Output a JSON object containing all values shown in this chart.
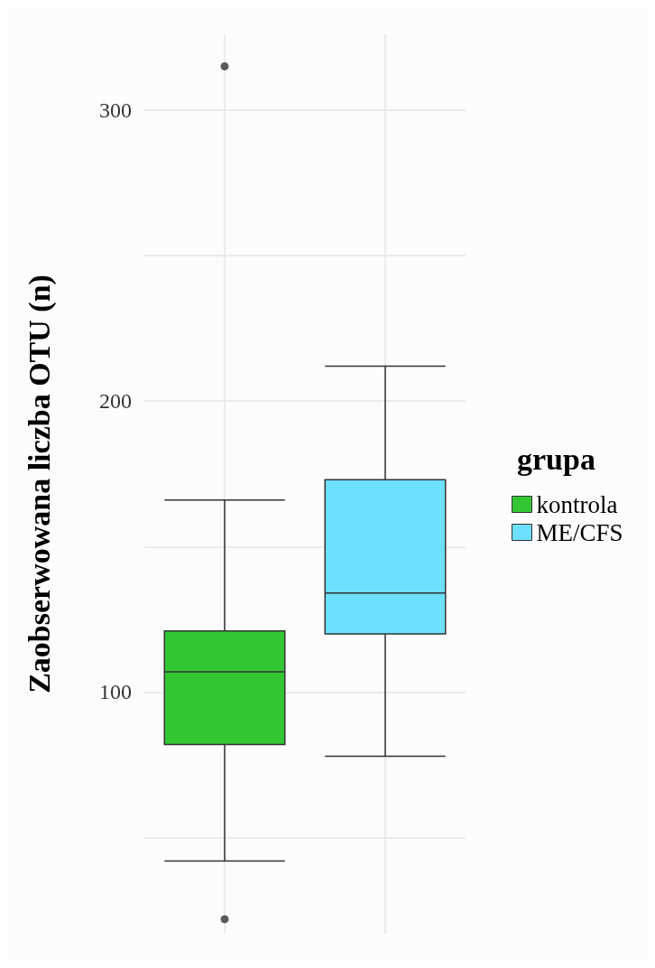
{
  "chart_data": {
    "type": "box",
    "categories": [
      null,
      null
    ],
    "ylabel": "Zaobserwowana liczba OTU (n)",
    "legend_title": "grupa",
    "legend": "right",
    "grid": true,
    "ylim": [
      17,
      326
    ],
    "yticks": [
      {
        "value": 50,
        "label": null
      },
      100,
      {
        "value": 150,
        "label": null
      },
      200,
      {
        "value": 250,
        "label": null
      },
      300
    ],
    "series": [
      {
        "name": "kontrola",
        "color": "#33c633",
        "boxes": [
          {
            "low": 42,
            "q1": 82,
            "median": 107,
            "q3": 121,
            "high": 166,
            "outliers": [
              22,
              315
            ]
          },
          null
        ]
      },
      {
        "name": "ME/CFS",
        "color": "#6ddfff",
        "boxes": [
          null,
          {
            "low": 78,
            "q1": 120,
            "median": 134,
            "q3": 173,
            "high": 212
          }
        ]
      }
    ]
  }
}
